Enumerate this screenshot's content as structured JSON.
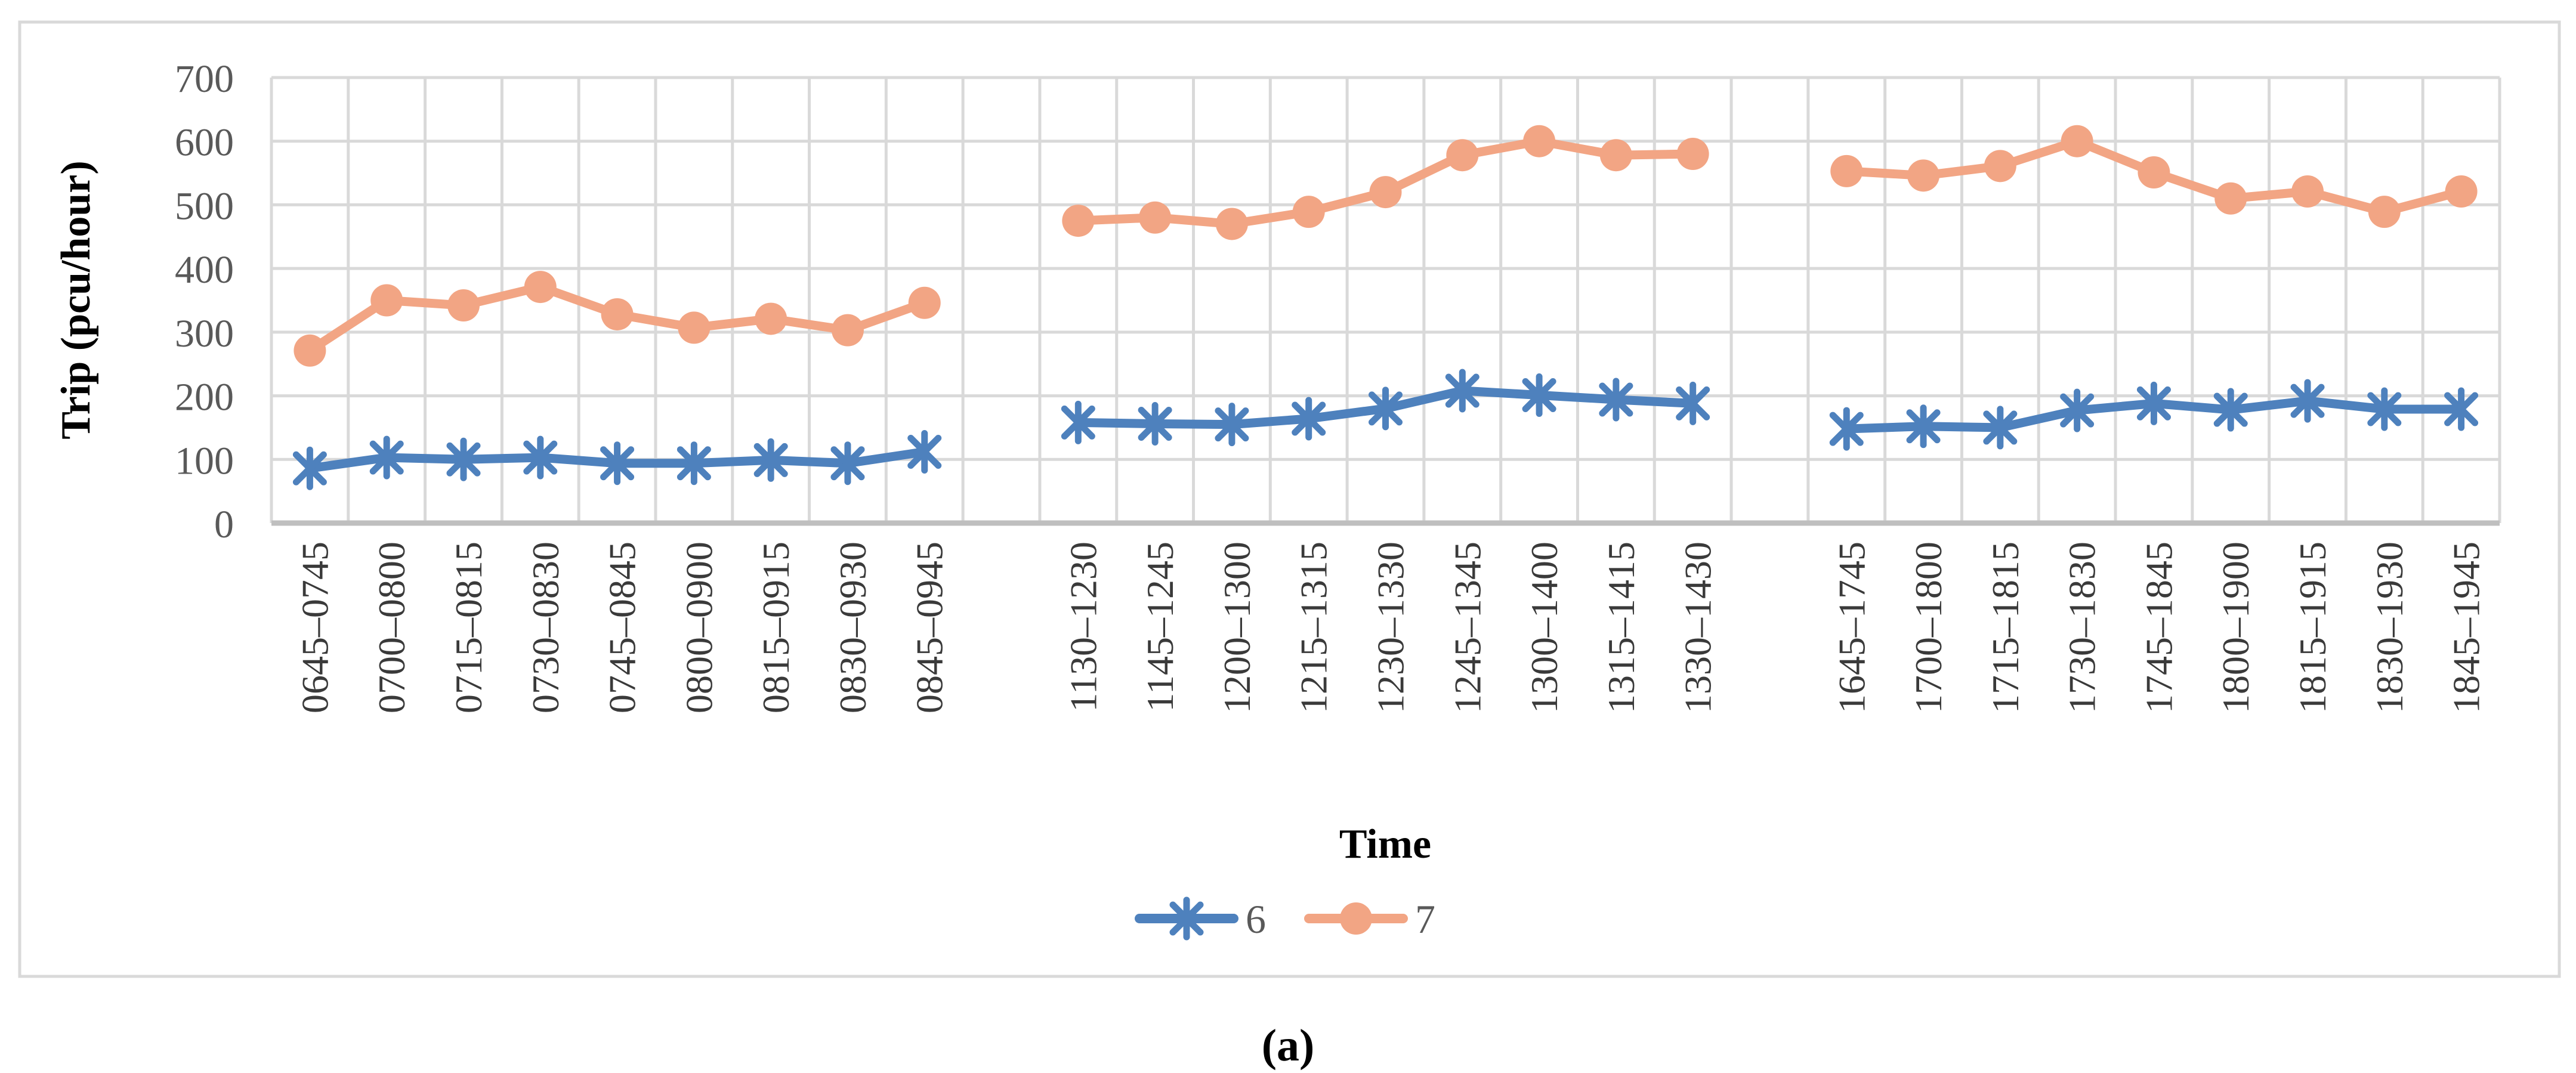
{
  "figure": {
    "caption": "(a)"
  },
  "chart_data": {
    "type": "line",
    "title": "",
    "xlabel": "Time",
    "ylabel": "Trip (pcu/hour)",
    "ylim": [
      0,
      700
    ],
    "ytick_interval": 100,
    "yticks": [
      0,
      100,
      200,
      300,
      400,
      500,
      600,
      700
    ],
    "grid": true,
    "legend_position": "bottom-center",
    "gap_columns_between_clusters": 1,
    "clusters": [
      {
        "categories": [
          "0645–0745",
          "0700–0800",
          "0715–0815",
          "0730–0830",
          "0745–0845",
          "0800–0900",
          "0815–0915",
          "0830–0930",
          "0845–0945"
        ]
      },
      {
        "categories": [
          "1130–1230",
          "1145–1245",
          "1200–1300",
          "1215–1315",
          "1230–1330",
          "1245–1345",
          "1300–1400",
          "1315–1415",
          "1330–1430"
        ]
      },
      {
        "categories": [
          "1645–1745",
          "1700–1800",
          "1715–1815",
          "1730–1830",
          "1745–1845",
          "1800–1900",
          "1815–1915",
          "1830–1930",
          "1845–1945"
        ]
      }
    ],
    "series": [
      {
        "name": "6",
        "marker": "asterisk",
        "color": "#4E81BD",
        "values": [
          [
            86,
            103,
            100,
            103,
            94,
            94,
            99,
            94,
            112
          ],
          [
            158,
            156,
            155,
            164,
            180,
            208,
            201,
            194,
            188
          ],
          [
            148,
            152,
            150,
            177,
            188,
            178,
            192,
            179,
            179
          ]
        ]
      },
      {
        "name": "7",
        "marker": "circle",
        "color": "#F2A584",
        "values": [
          [
            271,
            350,
            342,
            371,
            328,
            307,
            321,
            303,
            346
          ],
          [
            475,
            480,
            470,
            489,
            520,
            578,
            600,
            578,
            580
          ],
          [
            553,
            546,
            561,
            600,
            551,
            510,
            521,
            489,
            521
          ]
        ]
      }
    ],
    "styles": {
      "grid_color": "#D9D9D9",
      "axis_line_color": "#BFBFBF",
      "frame_color": "#D9D9D9",
      "y_tick_label_color": "#595959",
      "x_tick_label_color": "#3A3A3A",
      "legend_text_color": "#595959",
      "title_color": "#000000"
    }
  }
}
